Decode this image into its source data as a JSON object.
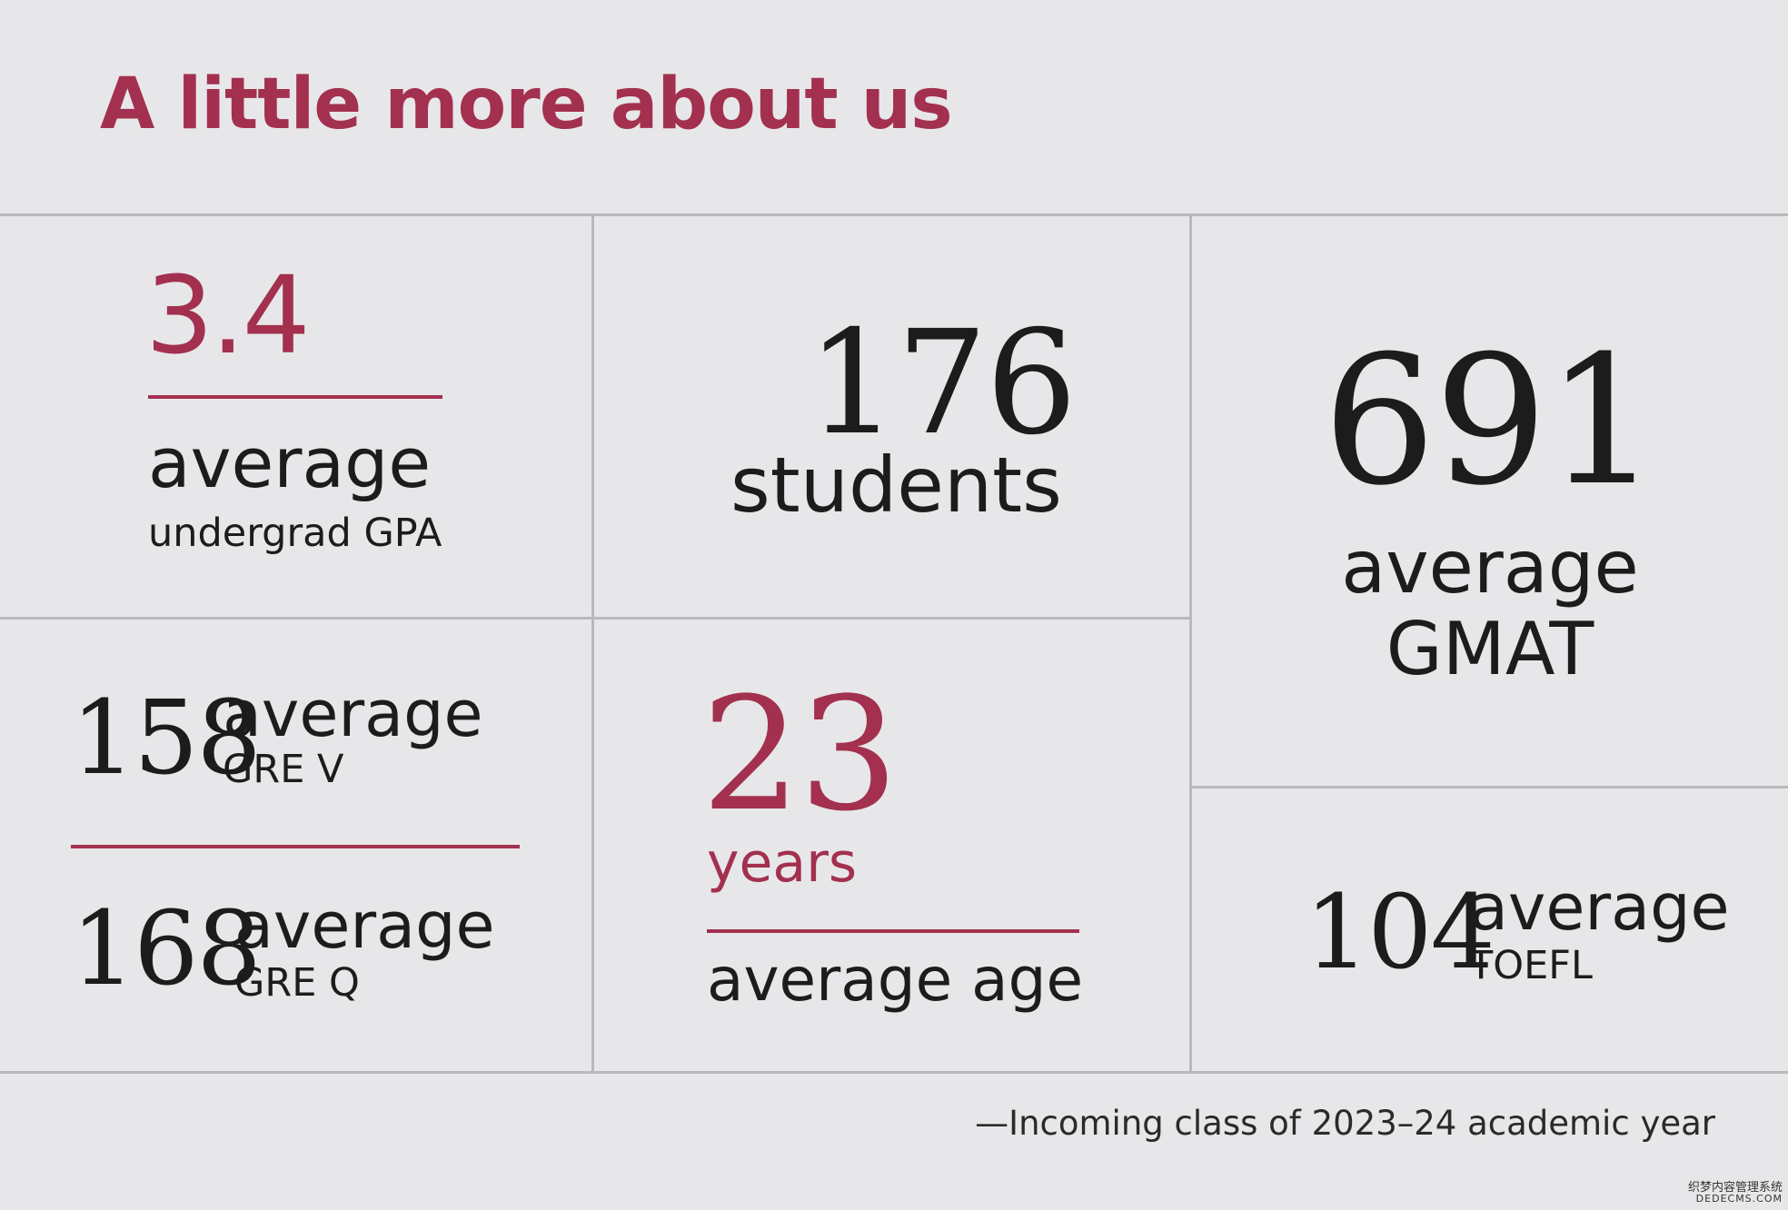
{
  "title": "A little more about us",
  "colors": {
    "accent": "#a3304f",
    "background": "#e7e7e9",
    "divider": "#b9b9bd",
    "text": "#1c1c1c"
  },
  "stats": {
    "gpa": {
      "value": "3.4",
      "label": "average",
      "sublabel": "undergrad GPA"
    },
    "students": {
      "value": "176",
      "label": "students"
    },
    "gmat": {
      "value": "691",
      "label": "average",
      "sublabel": "GMAT"
    },
    "gre_v": {
      "value": "158",
      "label": "average",
      "sublabel": "GRE V"
    },
    "gre_q": {
      "value": "168",
      "label": "average",
      "sublabel": "GRE Q"
    },
    "age": {
      "value": "23",
      "unit": "years",
      "label": "average age"
    },
    "toefl": {
      "value": "104",
      "label": "average",
      "sublabel": "TOEFL"
    }
  },
  "footnote": "—Incoming class of 2023–24 academic year",
  "watermark": {
    "line1": "织梦内容管理系统",
    "line2": "DEDECMS.COM"
  }
}
